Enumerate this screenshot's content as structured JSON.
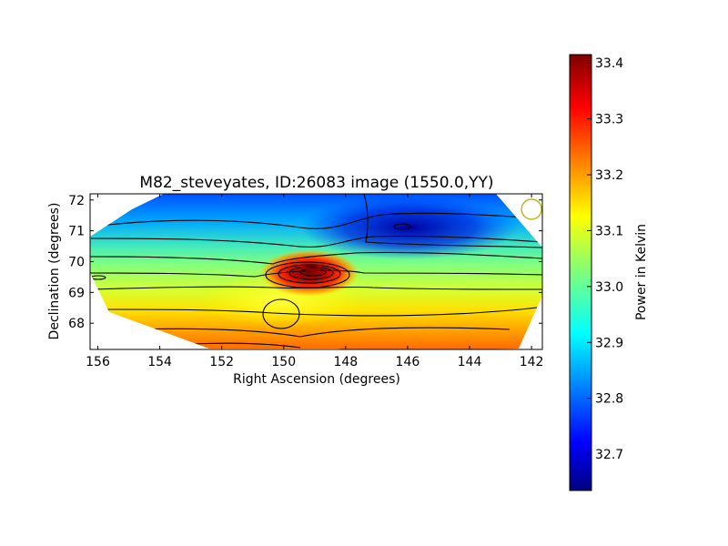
{
  "chart_data": {
    "type": "heatmap",
    "title": "M82_steveyates, ID:26083 image (1550.0,YY)",
    "xlabel": "Right Ascension (degrees)",
    "ylabel": "Declination (degrees)",
    "xlim": [
      156.25,
      141.65
    ],
    "ylim": [
      67.15,
      72.2
    ],
    "x_ticks": [
      156,
      154,
      152,
      150,
      148,
      146,
      144,
      142
    ],
    "y_ticks": [
      68,
      69,
      70,
      71,
      72
    ],
    "colorbar": {
      "label": "Power in Kelvin",
      "range": [
        32.635,
        33.415
      ],
      "ticks": [
        32.7,
        32.8,
        32.9,
        33.0,
        33.1,
        33.2,
        33.3,
        33.4
      ],
      "colormap": "jet"
    },
    "sources": [
      {
        "ra": 149.2,
        "dec": 69.6,
        "value": 33.4
      },
      {
        "ra": 150.6,
        "dec": 68.5,
        "value": 33.1
      }
    ],
    "background": {
      "top": 32.7,
      "middle": 33.0,
      "bottom": 33.25
    },
    "beam_marker": {
      "ra": 142.0,
      "dec": 71.7
    },
    "contours": "on"
  }
}
